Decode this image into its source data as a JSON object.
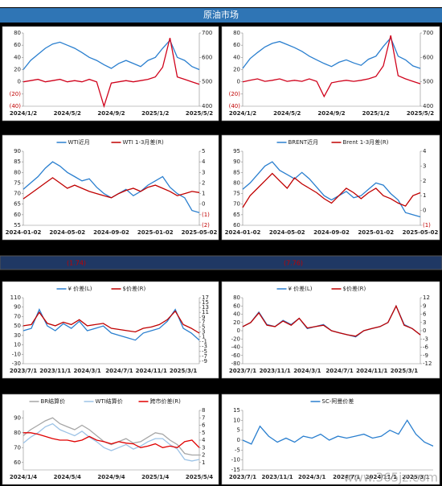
{
  "title": "原油市场",
  "band": [
    "(1.74)",
    "(7.76)"
  ],
  "watermark": "www.365jz.com",
  "chart_data": [
    {
      "type": "line",
      "categories": [
        "2024/1/2",
        null,
        null,
        null,
        null,
        null,
        "2024/5/2",
        null,
        null,
        null,
        null,
        null,
        "2024/9/2",
        null,
        null,
        null,
        null,
        null,
        "2025/1/2",
        null,
        null,
        null,
        null,
        null,
        "2025/5/2"
      ],
      "ylim": [
        -40,
        80
      ],
      "yticks": [
        80,
        60,
        40,
        20,
        0,
        {
          "value": -20,
          "label": "(20)"
        },
        {
          "value": -40,
          "label": "(40)"
        }
      ],
      "y2lim": [
        400,
        700
      ],
      "y2ticks": [
        700,
        600,
        500,
        400
      ],
      "series": [
        {
          "color": "#2a7fcf",
          "values": [
            20,
            35,
            45,
            55,
            62,
            65,
            60,
            55,
            48,
            40,
            35,
            28,
            22,
            30,
            35,
            30,
            25,
            35,
            40,
            55,
            68,
            40,
            35,
            25,
            20
          ]
        },
        {
          "color": "#d0021b",
          "axis": "y2",
          "values": [
            500,
            505,
            510,
            500,
            505,
            510,
            500,
            505,
            500,
            510,
            500,
            400,
            495,
            500,
            505,
            500,
            505,
            510,
            520,
            560,
            680,
            520,
            510,
            500,
            490
          ]
        }
      ]
    },
    {
      "type": "line",
      "categories": [
        "2024/1/2",
        null,
        null,
        null,
        null,
        null,
        "2024/5/2",
        null,
        null,
        null,
        null,
        null,
        "2024/9/2",
        null,
        null,
        null,
        null,
        null,
        "2025/1/2",
        null,
        null,
        null,
        null,
        null,
        "2025/5/2"
      ],
      "ylim": [
        -40,
        80
      ],
      "yticks": [
        80,
        60,
        40,
        20,
        0,
        {
          "value": -20,
          "label": "(20)"
        },
        {
          "value": -40,
          "label": "(40)"
        }
      ],
      "y2lim": [
        400,
        700
      ],
      "y2ticks": [
        700,
        600,
        500,
        400
      ],
      "series": [
        {
          "color": "#2a7fcf",
          "values": [
            22,
            38,
            48,
            57,
            63,
            66,
            61,
            56,
            50,
            42,
            36,
            30,
            25,
            32,
            36,
            31,
            27,
            37,
            42,
            58,
            72,
            42,
            36,
            26,
            22
          ]
        },
        {
          "color": "#d0021b",
          "axis": "y2",
          "values": [
            500,
            506,
            512,
            502,
            506,
            512,
            502,
            506,
            502,
            512,
            502,
            440,
            496,
            502,
            506,
            502,
            506,
            512,
            522,
            565,
            690,
            525,
            512,
            502,
            492
          ]
        }
      ]
    },
    {
      "type": "line",
      "categories": [
        "2024-01-02",
        null,
        null,
        null,
        null,
        null,
        "2024-05-02",
        null,
        null,
        null,
        null,
        null,
        "2024-09-02",
        null,
        null,
        null,
        null,
        null,
        "2025-01-02",
        null,
        null,
        null,
        null,
        null,
        "2025-05-02"
      ],
      "ylim": [
        55,
        90
      ],
      "yticks": [
        90,
        85,
        80,
        75,
        70,
        65,
        60,
        55
      ],
      "y2lim": [
        -2,
        5
      ],
      "y2ticks": [
        5,
        4,
        3,
        2,
        1,
        0,
        {
          "value": -1,
          "label": "(1)"
        },
        {
          "value": -2,
          "label": "(2)"
        }
      ],
      "series": [
        {
          "name": "WTI近月",
          "color": "#2a7fcf",
          "values": [
            72,
            75,
            78,
            82,
            85,
            83,
            80,
            78,
            76,
            77,
            73,
            70,
            68,
            70,
            72,
            69,
            71,
            74,
            76,
            78,
            73,
            70,
            68,
            62,
            61
          ]
        },
        {
          "name": "WTI 1-3月差(R)",
          "color": "#c00000",
          "axis": "y2",
          "values": [
            0.5,
            1,
            1.5,
            2,
            2.5,
            2,
            1.5,
            1.8,
            1.5,
            1.2,
            1,
            0.8,
            0.6,
            1,
            1.3,
            1.5,
            1.2,
            1.6,
            1.8,
            1.5,
            1.2,
            0.8,
            1,
            1.2,
            1.1
          ]
        }
      ]
    },
    {
      "type": "line",
      "categories": [
        "2024-01-02",
        null,
        null,
        null,
        null,
        null,
        "2024-05-02",
        null,
        null,
        null,
        null,
        null,
        "2024-09-02",
        null,
        null,
        null,
        null,
        null,
        "2025-01-02",
        null,
        null,
        null,
        null,
        null,
        "2025-05-02"
      ],
      "ylim": [
        60,
        95
      ],
      "yticks": [
        95,
        90,
        85,
        80,
        75,
        70,
        65,
        60
      ],
      "y2lim": [
        -1,
        4
      ],
      "y2ticks": [
        4,
        3,
        2,
        1,
        0,
        {
          "value": -1,
          "label": "(1)"
        }
      ],
      "series": [
        {
          "name": "BRENT近月",
          "color": "#2a7fcf",
          "values": [
            77,
            80,
            84,
            88,
            90,
            86,
            84,
            82,
            85,
            82,
            78,
            74,
            72,
            74,
            76,
            73,
            74,
            77,
            80,
            79,
            75,
            72,
            66,
            65,
            64
          ]
        },
        {
          "name": "Brent 1-3月差(R)",
          "color": "#c00000",
          "axis": "y2",
          "values": [
            0.2,
            1,
            1.5,
            2,
            2.5,
            2,
            1.5,
            2.2,
            1.8,
            1.5,
            1.2,
            0.8,
            0.5,
            1,
            1.5,
            1.2,
            0.8,
            1.2,
            1.5,
            1,
            0.8,
            0.5,
            0.3,
            1,
            1.2
          ]
        }
      ]
    },
    {
      "type": "line",
      "categories": [
        "2023/7/1",
        null,
        null,
        null,
        "2023/11/1",
        null,
        null,
        null,
        "2024/3/1",
        null,
        null,
        null,
        "2024/7/1",
        null,
        null,
        null,
        "2024/11/1",
        null,
        null,
        null,
        "2025/3/1",
        null,
        null
      ],
      "ylim": [
        -30,
        110
      ],
      "yticks": [
        110,
        90,
        70,
        50,
        30,
        10,
        -10,
        -30
      ],
      "y2lim": [
        -10,
        17
      ],
      "y2ticks": [
        17,
        15,
        13,
        11,
        9,
        7,
        5,
        3,
        1,
        -1,
        -3,
        -5,
        -7,
        -9
      ],
      "series": [
        {
          "name": "¥ 价差(L)",
          "color": "#2a7fcf",
          "values": [
            40,
            45,
            85,
            50,
            40,
            55,
            45,
            60,
            40,
            45,
            50,
            35,
            30,
            25,
            20,
            35,
            40,
            45,
            60,
            85,
            45,
            35,
            20
          ]
        },
        {
          "name": "$价差(R)",
          "color": "#c00000",
          "axis": "y2",
          "values": [
            5.5,
            6,
            11,
            6.5,
            5.5,
            7,
            6,
            8,
            5.5,
            6,
            6.5,
            4.5,
            4,
            3.5,
            3,
            4.5,
            5,
            6,
            8,
            11.5,
            6,
            4.5,
            2.5
          ]
        }
      ]
    },
    {
      "type": "line",
      "categories": [
        "2023/7/1",
        null,
        null,
        null,
        "2023/11/1",
        null,
        null,
        null,
        "2024/3/1",
        null,
        null,
        null,
        "2024/7/1",
        null,
        null,
        null,
        "2024/11/1",
        null,
        null,
        null,
        "2025/3/1",
        null,
        null
      ],
      "ylim": [
        -80,
        80
      ],
      "yticks": [
        80,
        60,
        40,
        20,
        0,
        -20,
        -40,
        -60,
        -80
      ],
      "y2lim": [
        -12,
        12
      ],
      "y2ticks": [
        12,
        9,
        6,
        3,
        0,
        -3,
        -6,
        -9,
        -12
      ],
      "series": [
        {
          "name": "¥ 价差(L)",
          "color": "#2a7fcf",
          "values": [
            10,
            20,
            45,
            15,
            10,
            25,
            15,
            30,
            5,
            10,
            15,
            0,
            -5,
            -10,
            -15,
            0,
            5,
            10,
            20,
            60,
            15,
            5,
            -10
          ]
        },
        {
          "name": "$价差(R)",
          "color": "#c00000",
          "axis": "y2",
          "values": [
            1.5,
            3,
            6.5,
            2,
            1.5,
            3.5,
            2,
            4.5,
            1,
            1.5,
            2,
            0,
            -0.8,
            -1.5,
            -2,
            0,
            0.8,
            1.5,
            3,
            9,
            2,
            0.8,
            -1.5
          ]
        }
      ]
    },
    {
      "type": "line",
      "categories": [
        "2024/1/4",
        null,
        null,
        null,
        null,
        null,
        "2024/5/4",
        null,
        null,
        null,
        null,
        null,
        "2024/9/4",
        null,
        null,
        null,
        null,
        null,
        "2025/1/4",
        null,
        null,
        null,
        null,
        null,
        "2025/5/4"
      ],
      "ylim": [
        55,
        95
      ],
      "yticks": [
        90,
        80,
        70,
        60
      ],
      "y2lim": [
        0,
        8
      ],
      "y2ticks": [
        8,
        7,
        6,
        5,
        4,
        3,
        2,
        1
      ],
      "series": [
        {
          "name": "BR结算价",
          "color": "#a6a6a6",
          "values": [
            78,
            82,
            85,
            88,
            90,
            86,
            84,
            82,
            85,
            82,
            78,
            74,
            72,
            74,
            76,
            73,
            74,
            77,
            80,
            79,
            75,
            72,
            66,
            65,
            65
          ]
        },
        {
          "name": "WTI结算价",
          "color": "#9dc3e6",
          "values": [
            73,
            77,
            80,
            84,
            86,
            82,
            80,
            78,
            81,
            77,
            74,
            70,
            68,
            70,
            72,
            69,
            71,
            74,
            76,
            76,
            72,
            69,
            62,
            61,
            62
          ]
        },
        {
          "name": "跨市价差(R)",
          "color": "#e00000",
          "axis": "y2",
          "values": [
            5,
            5,
            4.8,
            4.5,
            4.2,
            4,
            4,
            3.8,
            4,
            4.5,
            4,
            3.8,
            3.5,
            3.8,
            3.6,
            3.5,
            3,
            3.2,
            3.5,
            3,
            3.2,
            3,
            3.8,
            4,
            3
          ]
        }
      ]
    },
    {
      "type": "line",
      "categories": [
        "2023/7/1",
        null,
        null,
        null,
        "2023/11/1",
        null,
        null,
        null,
        "2024/3/1",
        null,
        null,
        null,
        "2024/7/1",
        null,
        null,
        null,
        "2024/11/1",
        null,
        null,
        null,
        "2025/3/1",
        null,
        null
      ],
      "ylim": [
        -15,
        15
      ],
      "yticks": [
        15,
        10,
        5,
        0,
        -5,
        -10,
        -15
      ],
      "series": [
        {
          "name": "SC-阿曼价差",
          "color": "#2a7fcf",
          "values": [
            0,
            -2,
            7,
            2,
            -1,
            1,
            -1,
            2,
            1,
            3,
            0,
            2,
            1,
            2,
            3,
            1,
            2,
            5,
            3,
            10,
            3,
            -1,
            -3
          ]
        }
      ]
    }
  ]
}
